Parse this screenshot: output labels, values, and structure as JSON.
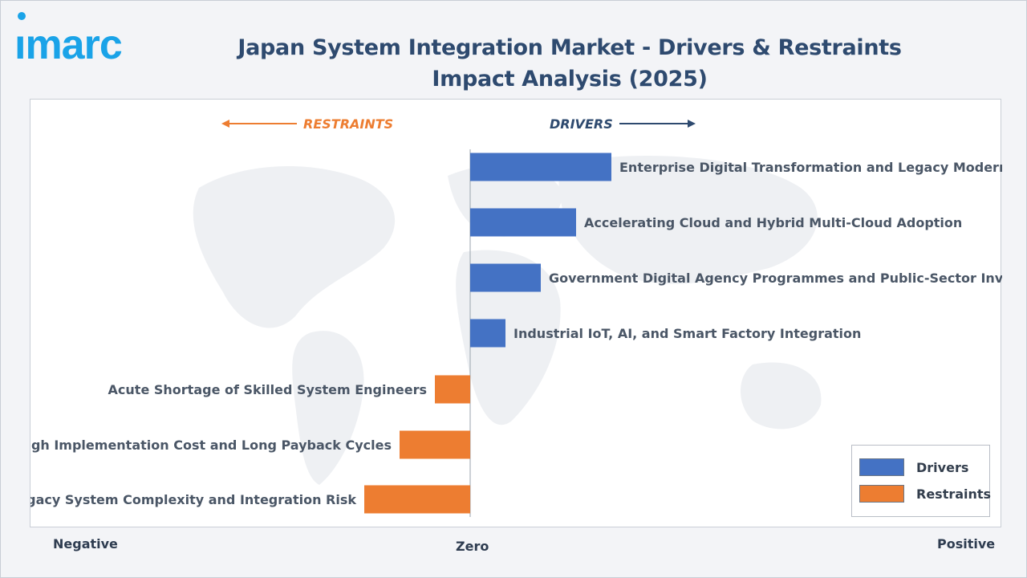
{
  "brand": {
    "logo_text": "imarc"
  },
  "header": {
    "title": "Japan System Integration Market - Drivers & Restraints Impact Analysis (2025)"
  },
  "directions": {
    "restraints_label": "RESTRAINTS",
    "drivers_label": "DRIVERS"
  },
  "axis_labels": {
    "negative": "Negative",
    "zero": "Zero",
    "positive": "Positive"
  },
  "legend": {
    "drivers_label": "Drivers",
    "restraints_label": "Restraints"
  },
  "colors": {
    "drivers": "#4472c4",
    "restraints": "#ed7d31",
    "title": "#2e4a6f",
    "logo": "#1aa3e8"
  },
  "chart_data": {
    "type": "bar",
    "orientation": "horizontal",
    "title": "Japan System Integration Market - Drivers & Restraints Impact Analysis (2025)",
    "xlabel": "",
    "ylabel": "",
    "xlim": [
      -6,
      8
    ],
    "grid": false,
    "legend_position": "bottom-right",
    "categories": [
      "Enterprise Digital Transformation and Legacy Modernisation",
      "Accelerating Cloud and Hybrid Multi-Cloud Adoption",
      "Government Digital Agency Programmes and Public-Sector Investment",
      "Industrial IoT, AI, and Smart Factory Integration",
      "Acute Shortage of Skilled System Engineers",
      "High Implementation Cost and Long Payback Cycles",
      "Legacy System Complexity and Integration Risk"
    ],
    "series": [
      {
        "name": "Drivers",
        "values": [
          4,
          3,
          2,
          1,
          null,
          null,
          null
        ]
      },
      {
        "name": "Restraints",
        "values": [
          null,
          null,
          null,
          null,
          -1,
          -2,
          -3
        ]
      }
    ]
  }
}
